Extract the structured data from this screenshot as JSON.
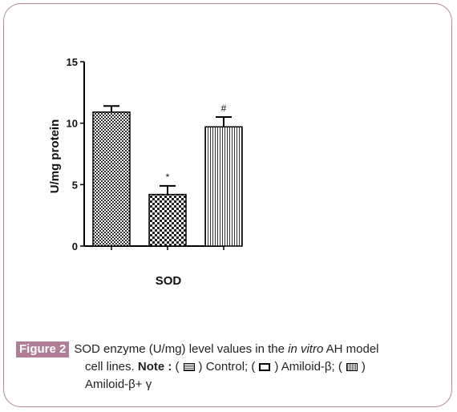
{
  "chart_data": {
    "type": "bar",
    "ylabel": "U/mg protein",
    "xlabel": "SOD",
    "ylim": [
      0,
      15
    ],
    "yticks": [
      0,
      5,
      10,
      15
    ],
    "series": [
      {
        "value": 10.9,
        "error": 0.5,
        "annotation": "",
        "pattern": "checker"
      },
      {
        "value": 4.2,
        "error": 0.7,
        "annotation": "*",
        "pattern": "checker-coarse"
      },
      {
        "value": 9.7,
        "error": 0.8,
        "annotation": "#",
        "pattern": "vertical"
      }
    ]
  },
  "caption": {
    "figure_label": "Figure 2",
    "text_before_italic": "SOD enzyme (U/mg) level values in the ",
    "italic": "in vitro",
    "text_after_italic": " AH model",
    "line2_prefix": "cell lines. ",
    "note_label": "Note :",
    "open_paren": "(",
    "legend1": ") Control; (",
    "legend2": ") Amiloid-β; (",
    "legend3": ")",
    "line3": "Amiloid-β+ γ"
  }
}
